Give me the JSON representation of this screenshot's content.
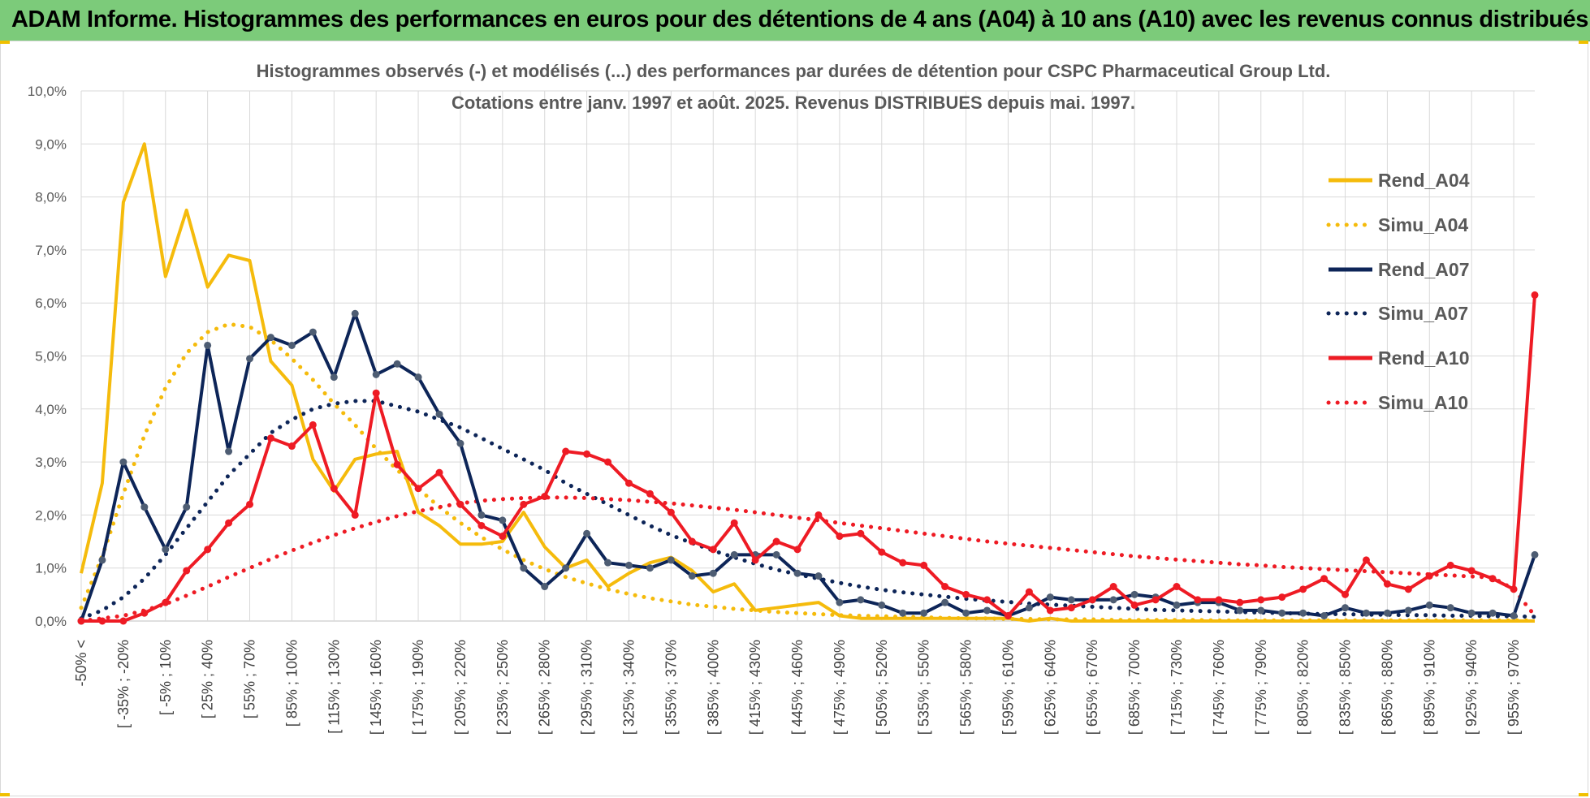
{
  "page": {
    "header_title": "ADAM Informe. Histogrammes des performances en euros pour des détentions de 4 ans (A04) à 10 ans (A10) avec les revenus connus distribués"
  },
  "colors": {
    "A04": "#f5bb0c",
    "A07": "#0d2558",
    "A07_marker": "#4e5d73",
    "A10": "#ee1b24",
    "header_bg": "#7ccb7a",
    "grid": "#d9d9d9"
  },
  "chart_data": {
    "type": "line",
    "title": "Histogrammes observés (-) et modélisés (...) des performances par durées de détention pour CSPC Pharmaceutical Group Ltd.",
    "subtitle": "Cotations entre janv. 1997 et août. 2025. Revenus DISTRIBUES depuis mai. 1997.",
    "xlabel": "",
    "ylabel": "",
    "ylim": [
      0,
      10
    ],
    "yticks": [
      "0,0%",
      "1,0%",
      "2,0%",
      "3,0%",
      "4,0%",
      "5,0%",
      "6,0%",
      "7,0%",
      "8,0%",
      "9,0%",
      "10,0%"
    ],
    "grid": true,
    "legend_position": "right",
    "x_tick_labels": [
      "-50% <",
      "[ -35% ; -20%",
      "[ -5% ; 10%",
      "[ 25% ; 40%",
      "[ 55% ; 70%",
      "[ 85% ; 100%",
      "[ 115% ; 130%",
      "[ 145% ; 160%",
      "[ 175% ; 190%",
      "[ 205% ; 220%",
      "[ 235% ; 250%",
      "[ 265% ; 280%",
      "[ 295% ; 310%",
      "[ 325% ; 340%",
      "[ 355% ; 370%",
      "[ 385% ; 400%",
      "[ 415% ; 430%",
      "[ 445% ; 460%",
      "[ 475% ; 490%",
      "[ 505% ; 520%",
      "[ 535% ; 550%",
      "[ 565% ; 580%",
      "[ 595% ; 610%",
      "[ 625% ; 640%",
      "[ 655% ; 670%",
      "[ 685% ; 700%",
      "[ 715% ; 730%",
      "[ 745% ; 760%",
      "[ 775% ; 790%",
      "[ 805% ; 820%",
      "[ 835% ; 850%",
      "[ 865% ; 880%",
      "[ 895% ; 910%",
      "[ 925% ; 940%",
      "[ 955% ; 970%"
    ],
    "series": [
      {
        "name": "Rend_A04",
        "style": "solid",
        "markers": false,
        "color": "#f5bb0c",
        "values": [
          0.9,
          2.6,
          7.9,
          9.0,
          6.5,
          7.75,
          6.3,
          6.9,
          6.8,
          4.9,
          4.45,
          3.05,
          2.45,
          3.05,
          3.15,
          3.2,
          2.05,
          1.8,
          1.45,
          1.45,
          1.5,
          2.05,
          1.4,
          1.0,
          1.15,
          0.65,
          0.9,
          1.1,
          1.2,
          0.95,
          0.55,
          0.7,
          0.2,
          0.25,
          0.3,
          0.35,
          0.1,
          0.05,
          0.05,
          0.05,
          0.05,
          0.05,
          0.05,
          0.05,
          0.05,
          0.0,
          0.05,
          0.0,
          0.0,
          0.0,
          0.0,
          0.0,
          0.0,
          0.0,
          0.0,
          0.0,
          0.0,
          0.0,
          0.0,
          0.0,
          0.0,
          0.0,
          0.0,
          0.0,
          0.0,
          0.0,
          0.0,
          0.0,
          0.0,
          0.0
        ]
      },
      {
        "name": "Simu_A04",
        "style": "dotted",
        "markers": false,
        "color": "#f5bb0c",
        "values": [
          0.25,
          1.22,
          2.4,
          3.5,
          4.4,
          5.05,
          5.45,
          5.6,
          5.55,
          5.3,
          4.95,
          4.55,
          4.1,
          3.7,
          3.25,
          2.85,
          2.5,
          2.15,
          1.85,
          1.58,
          1.35,
          1.15,
          0.98,
          0.83,
          0.71,
          0.6,
          0.51,
          0.43,
          0.37,
          0.31,
          0.27,
          0.23,
          0.2,
          0.17,
          0.15,
          0.13,
          0.11,
          0.1,
          0.09,
          0.08,
          0.07,
          0.06,
          0.05,
          0.05,
          0.04,
          0.04,
          0.03,
          0.03,
          0.03,
          0.02,
          0.02,
          0.02,
          0.02,
          0.02,
          0.01,
          0.01,
          0.01,
          0.01,
          0.01,
          0.01,
          0.01,
          0.01,
          0.01,
          0.01,
          0.01,
          0.01,
          0.01,
          0.01,
          0.01,
          0.01
        ]
      },
      {
        "name": "Rend_A07",
        "style": "solid",
        "markers": true,
        "color": "#0d2558",
        "values": [
          0.0,
          1.15,
          3.0,
          2.15,
          1.35,
          2.15,
          5.2,
          3.2,
          4.95,
          5.35,
          5.2,
          5.45,
          4.6,
          5.8,
          4.65,
          4.85,
          4.6,
          3.9,
          3.35,
          2.0,
          1.9,
          1.0,
          0.65,
          1.0,
          1.65,
          1.1,
          1.05,
          1.0,
          1.15,
          0.85,
          0.9,
          1.25,
          1.25,
          1.25,
          0.9,
          0.85,
          0.35,
          0.4,
          0.3,
          0.15,
          0.15,
          0.35,
          0.15,
          0.2,
          0.1,
          0.25,
          0.45,
          0.4,
          0.4,
          0.4,
          0.5,
          0.45,
          0.3,
          0.35,
          0.35,
          0.2,
          0.2,
          0.15,
          0.15,
          0.1,
          0.25,
          0.15,
          0.15,
          0.2,
          0.3,
          0.25,
          0.15,
          0.15,
          0.1,
          1.25
        ]
      },
      {
        "name": "Simu_A07",
        "style": "dotted",
        "markers": false,
        "color": "#0d2558",
        "values": [
          0.05,
          0.2,
          0.45,
          0.8,
          1.25,
          1.75,
          2.25,
          2.75,
          3.15,
          3.55,
          3.8,
          4.0,
          4.1,
          4.15,
          4.15,
          4.05,
          3.95,
          3.8,
          3.65,
          3.45,
          3.25,
          3.05,
          2.85,
          2.6,
          2.4,
          2.2,
          2.0,
          1.8,
          1.62,
          1.47,
          1.33,
          1.2,
          1.08,
          0.97,
          0.88,
          0.8,
          0.72,
          0.65,
          0.59,
          0.54,
          0.5,
          0.46,
          0.42,
          0.39,
          0.36,
          0.33,
          0.31,
          0.29,
          0.27,
          0.25,
          0.23,
          0.21,
          0.2,
          0.19,
          0.18,
          0.17,
          0.16,
          0.15,
          0.14,
          0.13,
          0.13,
          0.12,
          0.12,
          0.11,
          0.11,
          0.1,
          0.1,
          0.09,
          0.09,
          0.08
        ]
      },
      {
        "name": "Rend_A10",
        "style": "solid",
        "markers": true,
        "color": "#ee1b24",
        "values": [
          0.0,
          0.0,
          0.0,
          0.15,
          0.35,
          0.95,
          1.35,
          1.85,
          2.2,
          3.45,
          3.3,
          3.7,
          2.5,
          2.0,
          4.3,
          2.95,
          2.5,
          2.8,
          2.2,
          1.8,
          1.6,
          2.2,
          2.35,
          3.2,
          3.15,
          3.0,
          2.6,
          2.4,
          2.05,
          1.5,
          1.35,
          1.85,
          1.15,
          1.5,
          1.35,
          2.0,
          1.6,
          1.65,
          1.3,
          1.1,
          1.05,
          0.65,
          0.5,
          0.4,
          0.1,
          0.55,
          0.2,
          0.25,
          0.4,
          0.65,
          0.3,
          0.4,
          0.65,
          0.4,
          0.4,
          0.35,
          0.4,
          0.45,
          0.6,
          0.8,
          0.5,
          1.15,
          0.7,
          0.6,
          0.85,
          1.05,
          0.95,
          0.8,
          0.6,
          6.15
        ]
      },
      {
        "name": "Simu_A10",
        "style": "dotted",
        "markers": false,
        "color": "#ee1b24",
        "values": [
          0.0,
          0.05,
          0.1,
          0.2,
          0.32,
          0.48,
          0.65,
          0.83,
          1.0,
          1.17,
          1.33,
          1.48,
          1.62,
          1.75,
          1.87,
          1.98,
          2.07,
          2.15,
          2.22,
          2.27,
          2.3,
          2.32,
          2.33,
          2.33,
          2.32,
          2.3,
          2.28,
          2.25,
          2.22,
          2.18,
          2.14,
          2.1,
          2.05,
          2.0,
          1.95,
          1.9,
          1.85,
          1.8,
          1.75,
          1.7,
          1.65,
          1.6,
          1.55,
          1.5,
          1.46,
          1.42,
          1.38,
          1.34,
          1.3,
          1.26,
          1.22,
          1.19,
          1.16,
          1.13,
          1.1,
          1.07,
          1.05,
          1.02,
          1.0,
          0.98,
          0.96,
          0.94,
          0.92,
          0.9,
          0.88,
          0.86,
          0.84,
          0.82,
          0.6,
          0.1
        ]
      }
    ]
  }
}
